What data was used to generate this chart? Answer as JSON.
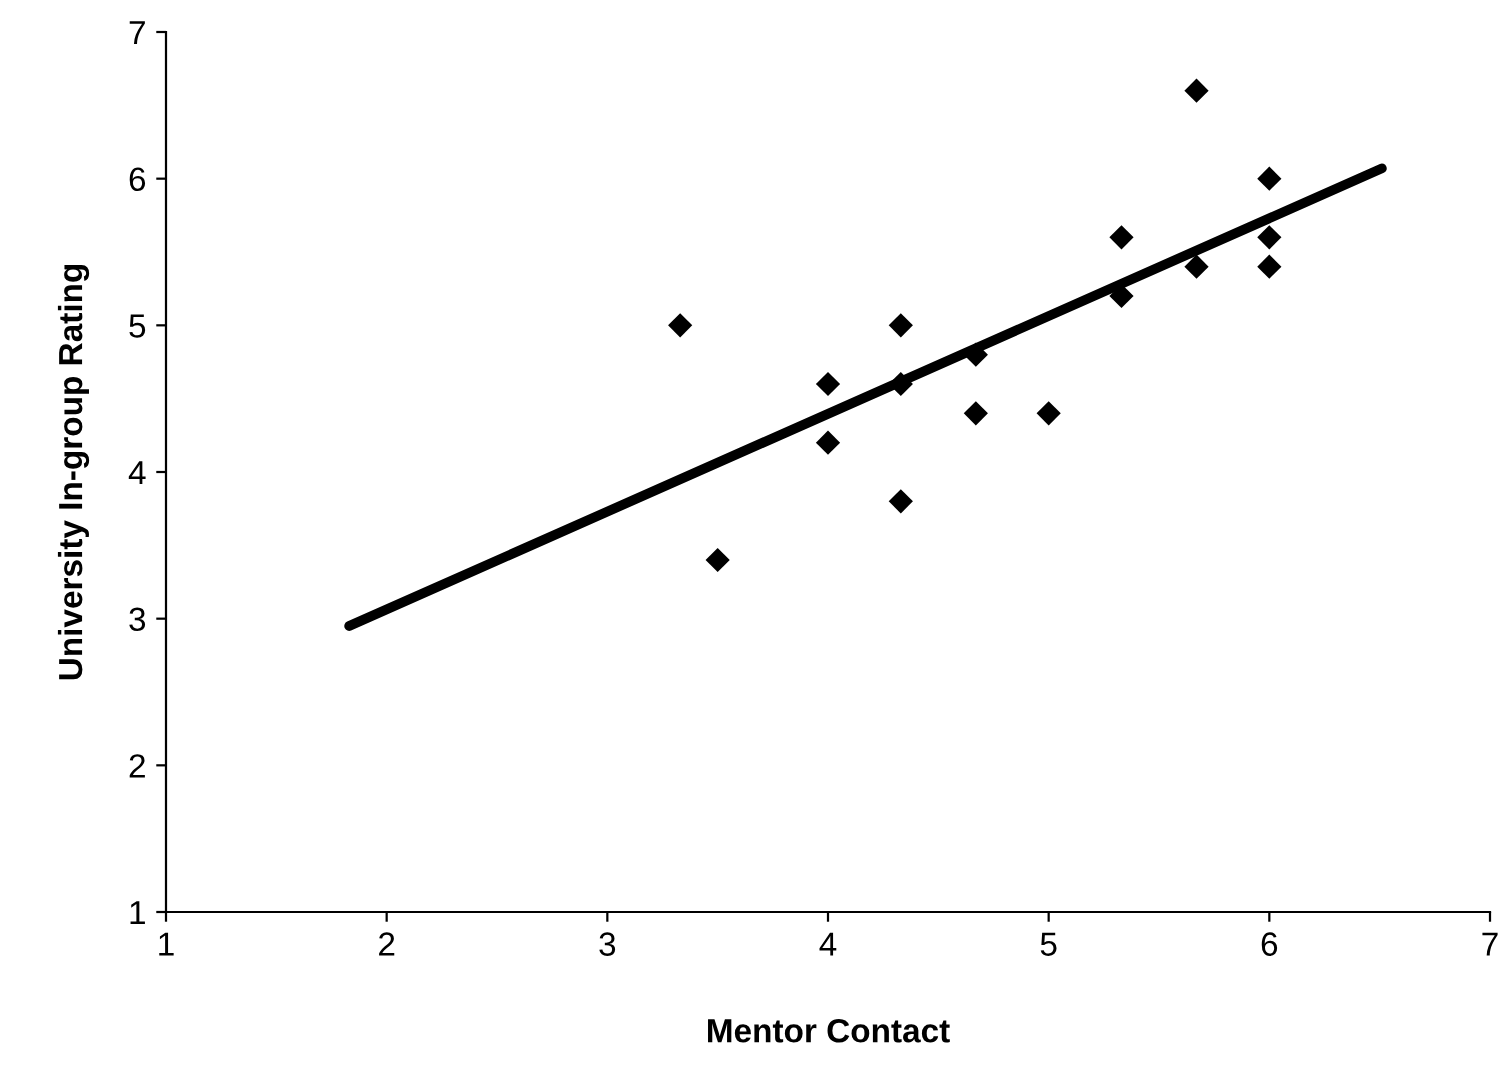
{
  "chart_data": {
    "type": "scatter",
    "xlabel": "Mentor Contact",
    "ylabel": "University In-group Rating",
    "series": [
      {
        "color": "#000000",
        "marker": "diamond",
        "x": [
          3.33,
          3.5,
          4,
          4,
          4.33,
          4.33,
          4.33,
          4.67,
          4.67,
          5,
          5.33,
          5.33,
          5.67,
          5.67,
          6,
          6,
          6
        ],
        "values": [
          5.0,
          3.4,
          4.6,
          4.2,
          5.0,
          4.6,
          3.8,
          4.8,
          4.4,
          4.4,
          5.6,
          5.2,
          6.6,
          5.4,
          6.0,
          5.6,
          5.4
        ]
      },
      {
        "type": "line",
        "color": "#000000",
        "line_style": "solid",
        "x": [
          1.83,
          6.51
        ],
        "values": [
          2.95,
          6.07
        ]
      }
    ],
    "xlim": [
      1,
      7
    ],
    "xticks": [
      1,
      2,
      3,
      4,
      5,
      6,
      7
    ],
    "ylim": [
      1,
      7
    ],
    "yticks": [
      1,
      2,
      3,
      4,
      5,
      6,
      7
    ],
    "grid": false,
    "legend": false
  }
}
